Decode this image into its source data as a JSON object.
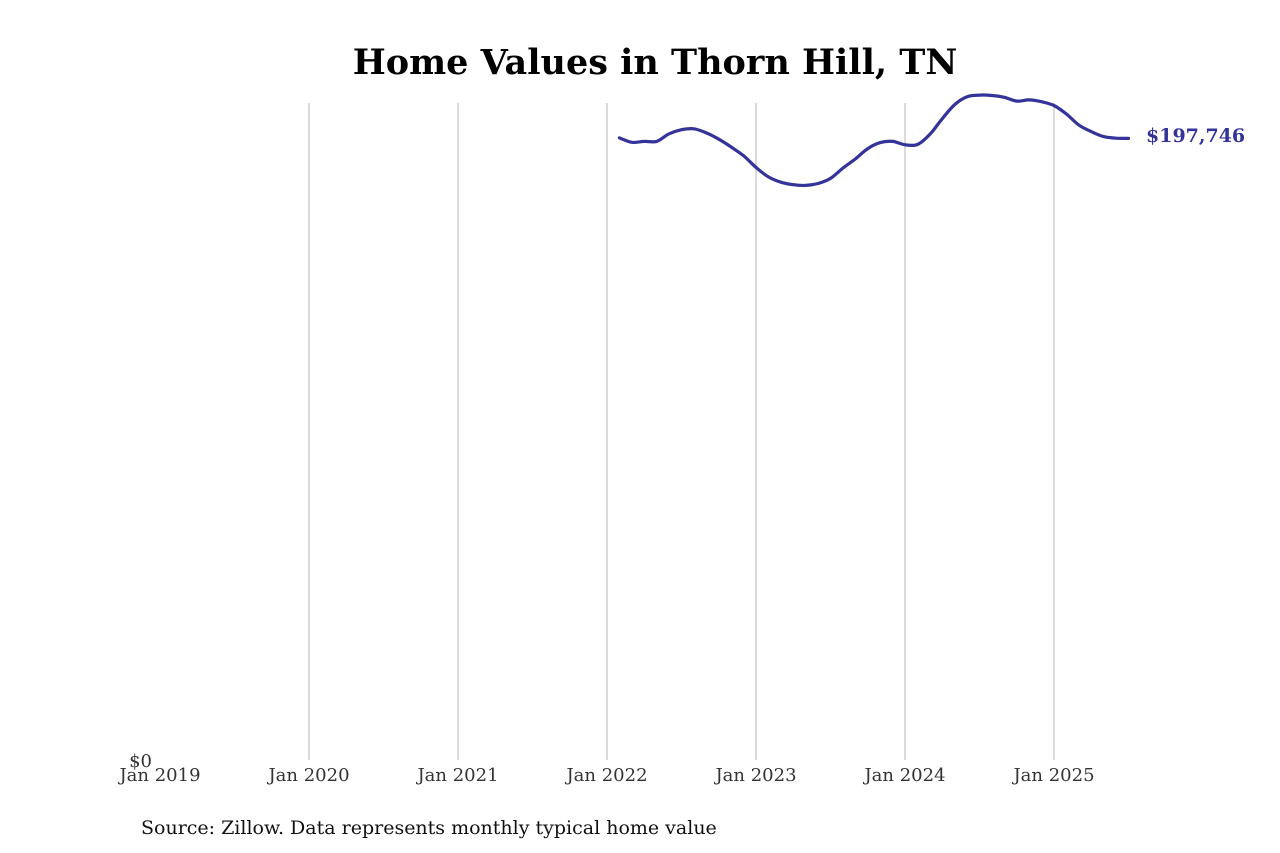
{
  "chart_data": {
    "type": "line",
    "title": "Home Values in Thorn Hill, TN",
    "source_note": "Source: Zillow. Data represents monthly typical home value",
    "xlabel": "",
    "ylabel": "",
    "x_ticks": [
      "Jan 2019",
      "Jan 2020",
      "Jan 2021",
      "Jan 2022",
      "Jan 2023",
      "Jan 2024",
      "Jan 2025"
    ],
    "y_tick_label": "$0",
    "ylim": [
      0,
      209000
    ],
    "xlim": [
      "2019-01",
      "2025-12"
    ],
    "grid": "vertical",
    "line_color": "#33339a",
    "end_label": "$197,746",
    "series": [
      {
        "x": [
          "2022-02",
          "2022-03",
          "2022-04",
          "2022-05",
          "2022-06",
          "2022-07",
          "2022-08",
          "2022-09",
          "2022-10",
          "2022-11",
          "2022-12",
          "2023-01",
          "2023-02",
          "2023-03",
          "2023-04",
          "2023-05",
          "2023-06",
          "2023-07",
          "2023-08",
          "2023-09",
          "2023-10",
          "2023-11",
          "2023-12",
          "2024-01",
          "2024-02",
          "2024-03",
          "2024-04",
          "2024-05",
          "2024-06",
          "2024-07",
          "2024-08",
          "2024-09",
          "2024-10",
          "2024-11",
          "2024-12",
          "2025-01",
          "2025-02",
          "2025-03",
          "2025-04",
          "2025-05",
          "2025-06",
          "2025-07"
        ],
        "values": [
          197900,
          196500,
          196800,
          196800,
          199200,
          200500,
          200800,
          199500,
          197500,
          195000,
          192200,
          188500,
          185500,
          183800,
          183000,
          182800,
          183400,
          185000,
          188300,
          191200,
          194500,
          196400,
          196800,
          195700,
          195800,
          199000,
          204000,
          208500,
          211000,
          211500,
          211400,
          210800,
          209600,
          210000,
          209400,
          208200,
          205500,
          202000,
          199900,
          198300,
          197800,
          197746
        ]
      }
    ]
  }
}
